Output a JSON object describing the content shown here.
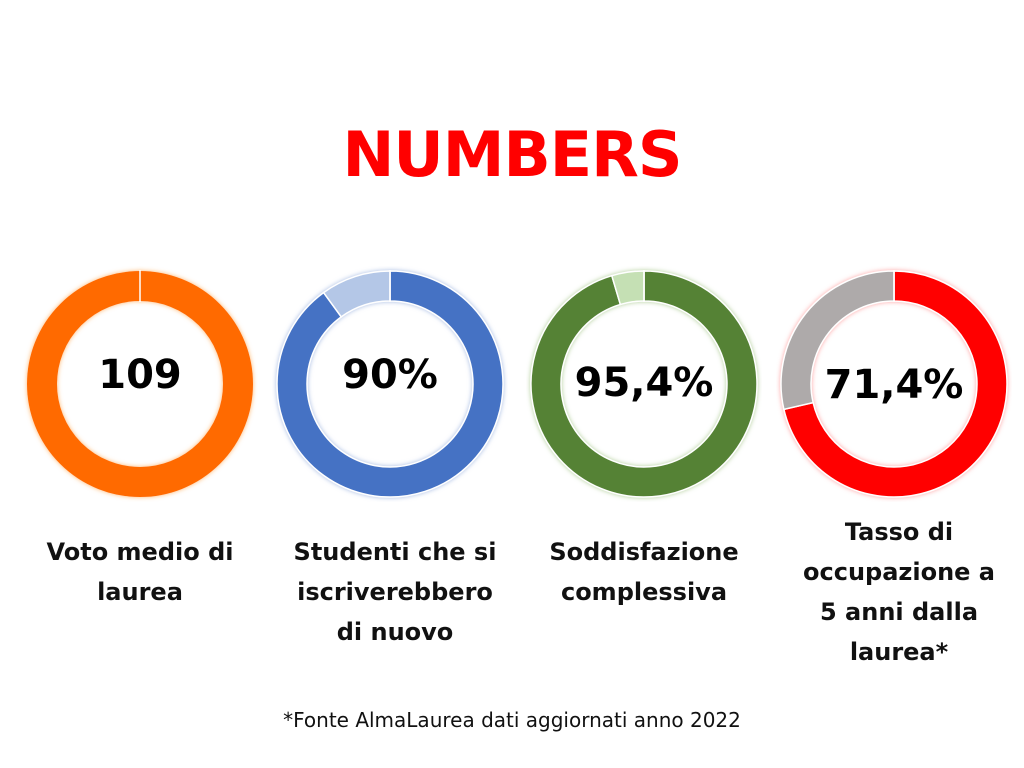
{
  "title": "NUMBERS",
  "title_color": "#ff0000",
  "footnote": "*Fonte AlmaLaurea dati aggiornati anno 2022",
  "chart_data": [
    {
      "type": "pie",
      "value_label": "109",
      "label_lines": [
        "Voto medio di",
        "laurea"
      ],
      "slices": [
        {
          "value": 100,
          "color": "#ff6a00"
        },
        {
          "value": 0,
          "color": "#ffffff"
        }
      ]
    },
    {
      "type": "pie",
      "value_label": "90%",
      "label_lines": [
        "Studenti che si",
        "iscriverebbero",
        "di nuovo"
      ],
      "slices": [
        {
          "value": 90,
          "color": "#4472c4"
        },
        {
          "value": 10,
          "color": "#b4c7e7"
        }
      ]
    },
    {
      "type": "pie",
      "value_label": "95,4%",
      "label_lines": [
        "Soddisfazione",
        "complessiva"
      ],
      "slices": [
        {
          "value": 95.4,
          "color": "#548235"
        },
        {
          "value": 4.6,
          "color": "#c5e0b4"
        }
      ]
    },
    {
      "type": "pie",
      "value_label": "71,4%",
      "label_lines": [
        "Tasso di",
        "occupazione a",
        "5 anni dalla",
        "laurea*"
      ],
      "slices": [
        {
          "value": 71.4,
          "color": "#ff0000"
        },
        {
          "value": 28.6,
          "color": "#aeaaaa"
        }
      ]
    }
  ]
}
